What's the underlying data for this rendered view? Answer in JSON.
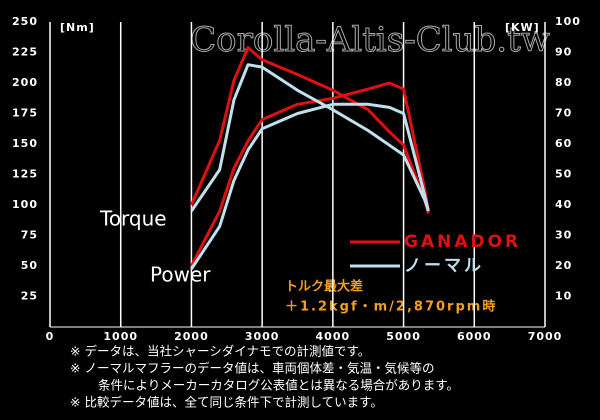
{
  "chart_data": {
    "type": "line",
    "watermark": "Corolla-Altis-Club.tw",
    "y_unit": "[Nm]",
    "y2_unit": "[KW]",
    "x": [
      2000,
      2400,
      2600,
      2800,
      3000,
      3500,
      4000,
      4500,
      4800,
      5000,
      5300,
      5350
    ],
    "xlim": [
      0,
      7000
    ],
    "xticks": [
      0,
      1000,
      2000,
      3000,
      4000,
      5000,
      6000,
      7000
    ],
    "ylim": [
      0,
      250
    ],
    "yticks": [
      25,
      50,
      75,
      100,
      125,
      150,
      175,
      200,
      225,
      250
    ],
    "y2lim": [
      0,
      100
    ],
    "y2ticks": [
      10,
      20,
      30,
      40,
      50,
      60,
      70,
      80,
      90,
      100
    ],
    "curve_labels": [
      "Torque",
      "Power"
    ],
    "series": [
      {
        "name": "GANADOR",
        "color": "#e01010",
        "torque": [
          100,
          153,
          202,
          229,
          219,
          207,
          194,
          178,
          160,
          149,
          104,
          93
        ],
        "power": [
          20,
          38,
          52,
          61,
          68,
          73,
          75,
          78,
          80,
          78,
          45,
          38
        ]
      },
      {
        "name": "ノーマル",
        "color": "#bfe0ec",
        "torque": [
          95,
          129,
          186,
          215,
          213,
          194,
          178,
          161,
          149,
          141,
          104,
          96
        ],
        "power": [
          19,
          33,
          48,
          58,
          65,
          70,
          73,
          73,
          72,
          70,
          43,
          38
        ]
      }
    ],
    "annotation": [
      "トルク最大差",
      "＋1.2kgf・m/2,870rpm時"
    ],
    "notes": [
      "※ データは、当社シャーシダイナモでの計測値です。",
      "※ ノーマルマフラーのデータ値は、車両個体差・気温・気候等の",
      "条件によりメーカーカタログ公表値とは異なる場合があります。",
      "※ 比較データ値は、全て同じ条件下で計測しています。"
    ]
  }
}
